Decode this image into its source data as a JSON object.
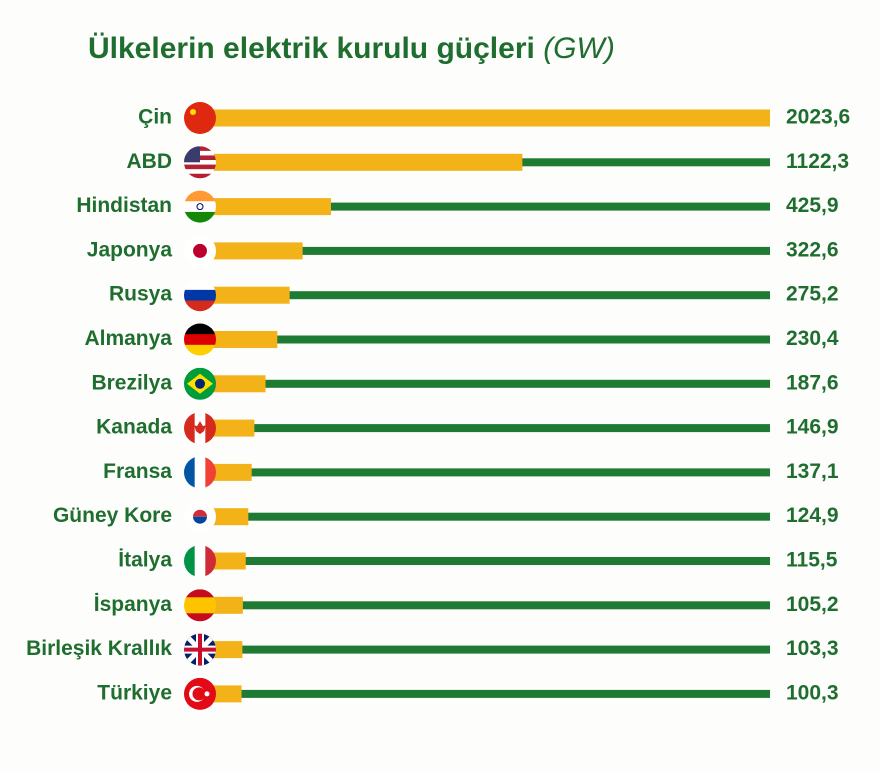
{
  "chart_data": {
    "type": "bar",
    "orientation": "horizontal",
    "title": "Ülkelerin elektrik kurulu güçleri",
    "unit": "(GW)",
    "categories": [
      "Çin",
      "ABD",
      "Hindistan",
      "Japonya",
      "Rusya",
      "Almanya",
      "Brezilya",
      "Kanada",
      "Fransa",
      "Güney Kore",
      "İtalya",
      "İspanya",
      "Birleşik Krallık",
      "Türkiye"
    ],
    "values": [
      2023.6,
      1122.3,
      425.9,
      322.6,
      275.2,
      230.4,
      187.6,
      146.9,
      137.1,
      124.9,
      115.5,
      105.2,
      103.3,
      100.3
    ],
    "value_labels": [
      "2023,6",
      "1122,3",
      "425,9",
      "322,6",
      "275,2",
      "230,4",
      "187,6",
      "146,9",
      "137,1",
      "124,9",
      "115,5",
      "105,2",
      "103,3",
      "100,3"
    ],
    "color": "#f4b219",
    "track_color": "#1f7a33",
    "xlim": [
      0,
      2023.6
    ]
  }
}
